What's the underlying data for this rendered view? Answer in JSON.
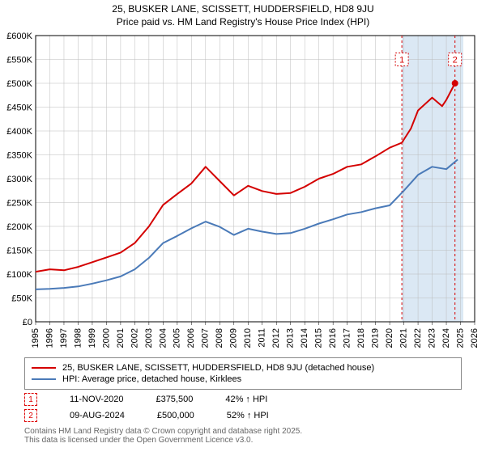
{
  "title": "25, BUSKER LANE, SCISSETT, HUDDERSFIELD, HD8 9JU",
  "subtitle": "Price paid vs. HM Land Registry's House Price Index (HPI)",
  "chart": {
    "type": "line",
    "background_color": "#ffffff",
    "grid_color": "#bbbbbb",
    "highlight_band_color": "#dbe8f4",
    "highlight_band_x_start": 2020.86,
    "highlight_band_x_end": 2025.2,
    "xlim": [
      1995,
      2026
    ],
    "ylim": [
      0,
      600000
    ],
    "ytick_step": 50000,
    "yticks": [
      "£0",
      "£50K",
      "£100K",
      "£150K",
      "£200K",
      "£250K",
      "£300K",
      "£350K",
      "£400K",
      "£450K",
      "£500K",
      "£550K",
      "£600K"
    ],
    "xticks": [
      1995,
      1996,
      1997,
      1998,
      1999,
      2000,
      2001,
      2002,
      2003,
      2004,
      2005,
      2006,
      2007,
      2008,
      2009,
      2010,
      2011,
      2012,
      2013,
      2014,
      2015,
      2016,
      2017,
      2018,
      2019,
      2020,
      2021,
      2022,
      2023,
      2024,
      2025,
      2026
    ],
    "axis_fontsize": 11,
    "line_width": 2,
    "series": [
      {
        "name": "price_paid",
        "color": "#d40000",
        "label": "25, BUSKER LANE, SCISSETT, HUDDERSFIELD, HD8 9JU (detached house)",
        "points": [
          [
            1995,
            105000
          ],
          [
            1996,
            110000
          ],
          [
            1997,
            108000
          ],
          [
            1998,
            115000
          ],
          [
            1999,
            125000
          ],
          [
            2000,
            135000
          ],
          [
            2001,
            145000
          ],
          [
            2002,
            165000
          ],
          [
            2003,
            200000
          ],
          [
            2004,
            245000
          ],
          [
            2005,
            268000
          ],
          [
            2006,
            290000
          ],
          [
            2007,
            325000
          ],
          [
            2008,
            295000
          ],
          [
            2009,
            265000
          ],
          [
            2010,
            285000
          ],
          [
            2011,
            274000
          ],
          [
            2012,
            268000
          ],
          [
            2013,
            270000
          ],
          [
            2014,
            283000
          ],
          [
            2015,
            300000
          ],
          [
            2016,
            310000
          ],
          [
            2017,
            325000
          ],
          [
            2018,
            330000
          ],
          [
            2019,
            347000
          ],
          [
            2020,
            365000
          ],
          [
            2020.86,
            375500
          ],
          [
            2021.5,
            405000
          ],
          [
            2022,
            443000
          ],
          [
            2023,
            470000
          ],
          [
            2023.7,
            452000
          ],
          [
            2024,
            465000
          ],
          [
            2024.61,
            500000
          ]
        ]
      },
      {
        "name": "hpi",
        "color": "#4a7ab8",
        "label": "HPI: Average price, detached house, Kirklees",
        "points": [
          [
            1995,
            68000
          ],
          [
            1996,
            69000
          ],
          [
            1997,
            71000
          ],
          [
            1998,
            74000
          ],
          [
            1999,
            80000
          ],
          [
            2000,
            87000
          ],
          [
            2001,
            95000
          ],
          [
            2002,
            110000
          ],
          [
            2003,
            134000
          ],
          [
            2004,
            165000
          ],
          [
            2005,
            180000
          ],
          [
            2006,
            196000
          ],
          [
            2007,
            210000
          ],
          [
            2008,
            199000
          ],
          [
            2009,
            182000
          ],
          [
            2010,
            195000
          ],
          [
            2011,
            189000
          ],
          [
            2012,
            184000
          ],
          [
            2013,
            186000
          ],
          [
            2014,
            195000
          ],
          [
            2015,
            206000
          ],
          [
            2016,
            215000
          ],
          [
            2017,
            225000
          ],
          [
            2018,
            230000
          ],
          [
            2019,
            238000
          ],
          [
            2020,
            244000
          ],
          [
            2021,
            275000
          ],
          [
            2022,
            308000
          ],
          [
            2023,
            325000
          ],
          [
            2024,
            320000
          ],
          [
            2024.8,
            340000
          ]
        ]
      }
    ],
    "sale_markers": [
      {
        "n": 1,
        "x_year": 2020.86,
        "line_color": "#d40000",
        "y_label": 550000
      },
      {
        "n": 2,
        "x_year": 2024.61,
        "line_color": "#d40000",
        "y_label": 550000,
        "has_dot": true,
        "dot_y": 500000
      }
    ]
  },
  "legend": {
    "items": [
      {
        "color": "#d40000",
        "label": "25, BUSKER LANE, SCISSETT, HUDDERSFIELD, HD8 9JU (detached house)"
      },
      {
        "color": "#4a7ab8",
        "label": "HPI: Average price, detached house, Kirklees"
      }
    ]
  },
  "sales": [
    {
      "marker": "1",
      "date": "11-NOV-2020",
      "price": "£375,500",
      "delta": "42% ↑ HPI"
    },
    {
      "marker": "2",
      "date": "09-AUG-2024",
      "price": "£500,000",
      "delta": "52% ↑ HPI"
    }
  ],
  "copyright": {
    "line1": "Contains HM Land Registry data © Crown copyright and database right 2025.",
    "line2": "This data is licensed under the Open Government Licence v3.0."
  }
}
